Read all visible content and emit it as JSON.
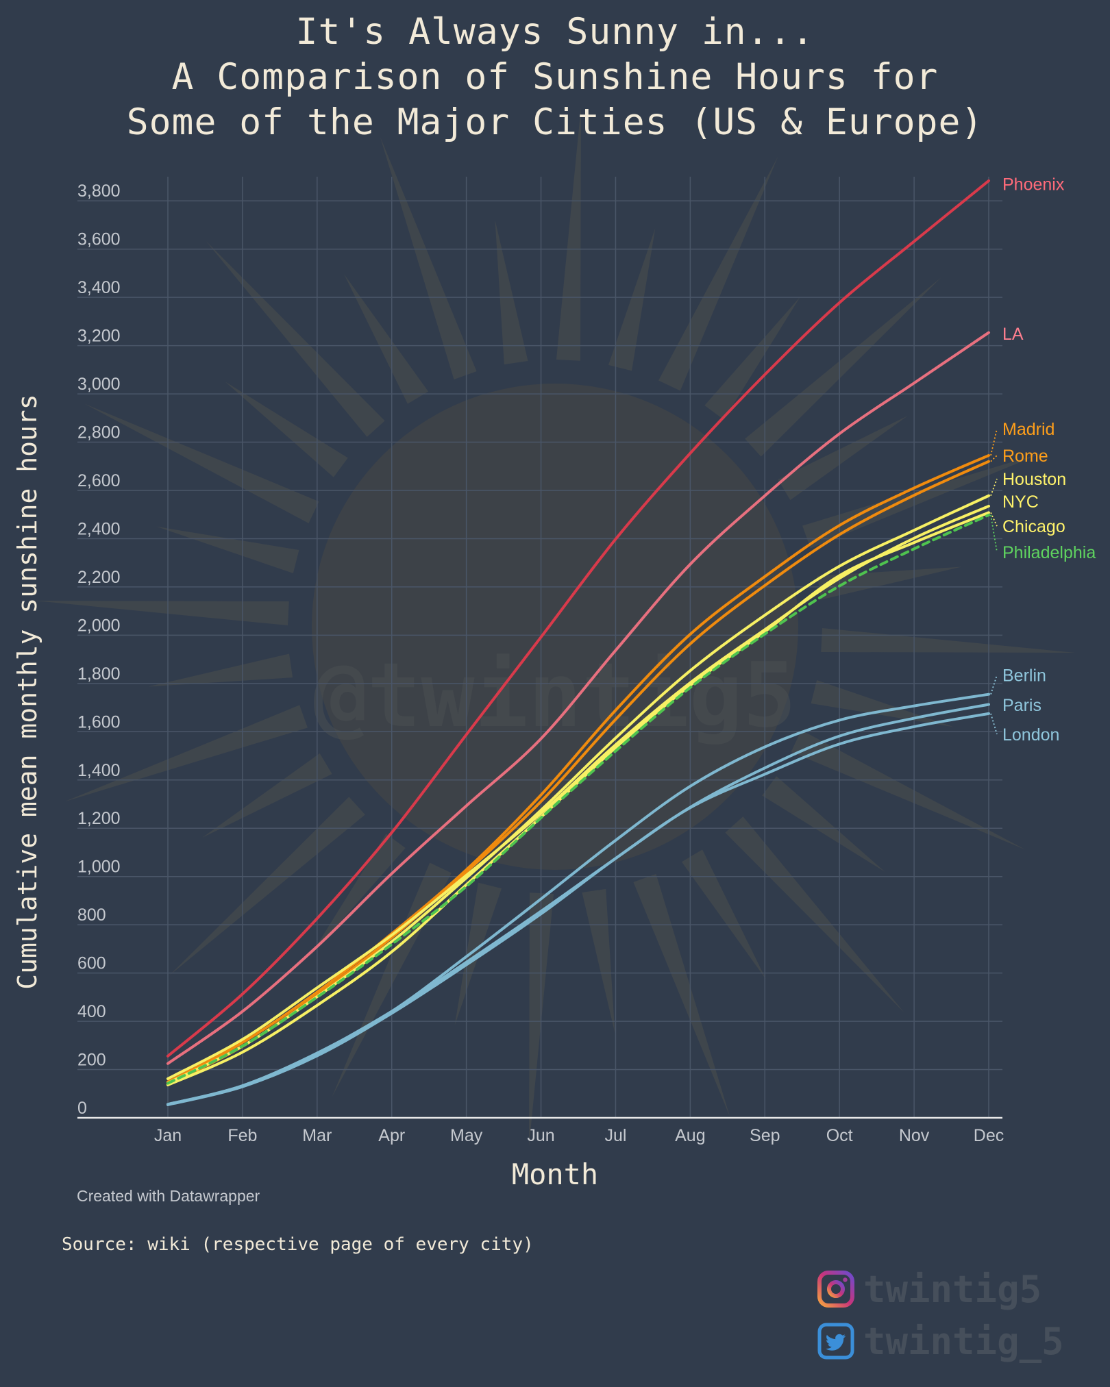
{
  "title_lines": [
    "It's Always Sunny in...",
    "A Comparison of Sunshine Hours for",
    "Some of the Major Cities (US & Europe)"
  ],
  "watermark": "@twintig5",
  "footer": {
    "credit": "Created with Datawrapper",
    "source": "Source: wiki (respective page of every city)"
  },
  "social": {
    "instagram": {
      "icon": "instagram-icon",
      "handle": "twintig5"
    },
    "twitter": {
      "icon": "twitter-icon",
      "handle": "twintig_5"
    }
  },
  "chart_data": {
    "type": "line",
    "title": "It's Always Sunny in... A Comparison of Sunshine Hours for Some of the Major Cities (US & Europe)",
    "xlabel": "Month",
    "ylabel": "Cumulative mean monthly sunshine hours",
    "categories": [
      "Jan",
      "Feb",
      "Mar",
      "Apr",
      "May",
      "Jun",
      "Jul",
      "Aug",
      "Sep",
      "Oct",
      "Nov",
      "Dec"
    ],
    "ylim": [
      0,
      3900
    ],
    "yticks": [
      0,
      200,
      400,
      600,
      800,
      1000,
      1200,
      1400,
      1600,
      1800,
      2000,
      2200,
      2400,
      2600,
      2800,
      3000,
      3200,
      3400,
      3600,
      3800
    ],
    "ytick_labels": [
      "0",
      "200",
      "400",
      "600",
      "800",
      "1,000",
      "1,200",
      "1,400",
      "1,600",
      "1,800",
      "2,000",
      "2,200",
      "2,400",
      "2,600",
      "2,800",
      "3,000",
      "3,200",
      "3,400",
      "3,600",
      "3,800"
    ],
    "grid": true,
    "legend": "direct labels at line ends, right",
    "series": [
      {
        "name": "Phoenix",
        "color": "#d93a4b",
        "label_color": "#ff6b7a",
        "dashed": false,
        "label_value": 3870,
        "values": [
          256,
          513,
          826,
          1182,
          1588,
          1992,
          2398,
          2754,
          3080,
          3378,
          3632,
          3883
        ]
      },
      {
        "name": "LA",
        "color": "#e8707f",
        "label_color": "#ff7f8f",
        "dashed": false,
        "label_value": 3250,
        "values": [
          225,
          441,
          710,
          1012,
          1293,
          1571,
          1937,
          2294,
          2578,
          2835,
          3045,
          3254
        ]
      },
      {
        "name": "Madrid",
        "color": "#f08b0e",
        "label_color": "#ff9f1a",
        "dashed": false,
        "label_value": 2855,
        "values": [
          149,
          312,
          521,
          763,
          1028,
          1338,
          1689,
          2004,
          2243,
          2455,
          2610,
          2745
        ]
      },
      {
        "name": "Rome",
        "color": "#f08b0e",
        "label_color": "#ff9f1a",
        "dashed": false,
        "label_value": 2745,
        "values": [
          138,
          296,
          507,
          747,
          1019,
          1311,
          1651,
          1964,
          2206,
          2417,
          2580,
          2720
        ]
      },
      {
        "name": "Houston",
        "color": "#f7f064",
        "label_color": "#fff36b",
        "dashed": false,
        "label_value": 2648,
        "values": [
          144,
          297,
          502,
          730,
          994,
          1275,
          1574,
          1853,
          2083,
          2286,
          2435,
          2578
        ]
      },
      {
        "name": "NYC",
        "color": "#f7f064",
        "label_color": "#fff36b",
        "dashed": false,
        "label_value": 2555,
        "values": [
          162,
          325,
          539,
          757,
          1005,
          1262,
          1546,
          1803,
          2023,
          2236,
          2402,
          2535
        ]
      },
      {
        "name": "Chicago",
        "color": "#f7f064",
        "label_color": "#fff36b",
        "dashed": false,
        "label_value": 2452,
        "values": [
          136,
          272,
          466,
          688,
          966,
          1246,
          1534,
          1792,
          2015,
          2247,
          2384,
          2508
        ]
      },
      {
        "name": "Philadelphia",
        "color": "#4fc34f",
        "label_color": "#5fd35f",
        "dashed": true,
        "label_value": 2345,
        "values": [
          143,
          297,
          500,
          719,
          959,
          1243,
          1520,
          1783,
          2005,
          2204,
          2358,
          2498
        ]
      },
      {
        "name": "Berlin",
        "color": "#7fb8d0",
        "label_color": "#8fc6dc",
        "dashed": false,
        "label_value": 1835,
        "values": [
          56,
          133,
          268,
          441,
          668,
          907,
          1150,
          1374,
          1537,
          1648,
          1707,
          1755
        ]
      },
      {
        "name": "Paris",
        "color": "#7fb8d0",
        "label_color": "#8fc6dc",
        "dashed": false,
        "label_value": 1712,
        "values": [
          56,
          133,
          268,
          441,
          645,
          856,
          1075,
          1287,
          1450,
          1582,
          1656,
          1713
        ]
      },
      {
        "name": "London",
        "color": "#7fb8d0",
        "label_color": "#8fc6dc",
        "dashed": false,
        "label_value": 1590,
        "values": [
          54,
          129,
          257,
          433,
          634,
          845,
          1075,
          1285,
          1424,
          1549,
          1621,
          1675
        ]
      }
    ]
  }
}
